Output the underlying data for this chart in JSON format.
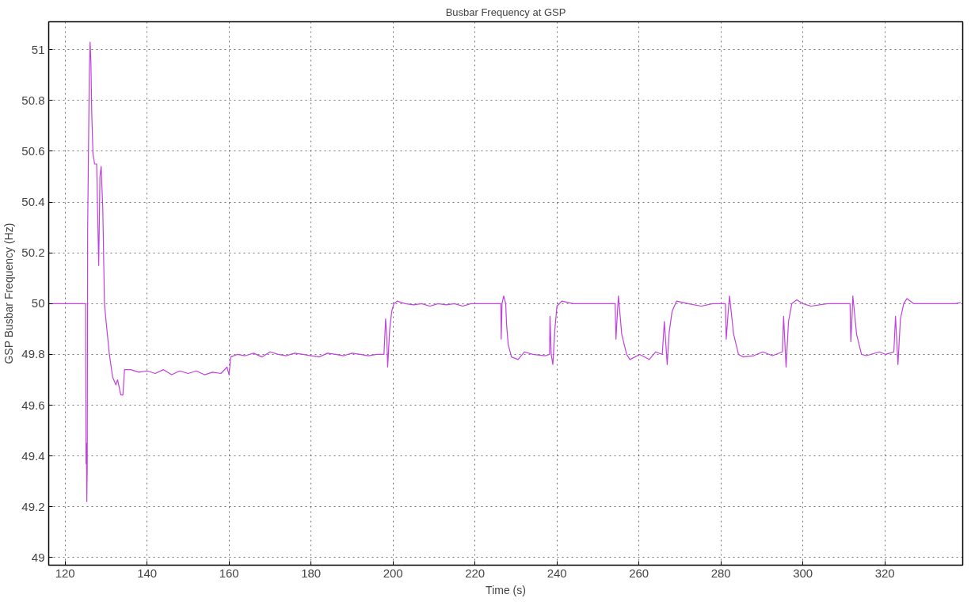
{
  "chart_data": {
    "type": "line",
    "title": "Busbar Frequency at GSP",
    "xlabel": "Time (s)",
    "ylabel": "GSP Busbar Frequency (Hz)",
    "xlim": [
      116,
      339
    ],
    "ylim": [
      48.97,
      51.11
    ],
    "xticks": [
      120,
      140,
      160,
      180,
      200,
      220,
      240,
      260,
      280,
      300,
      320
    ],
    "yticks": [
      49,
      49.2,
      49.4,
      49.6,
      49.8,
      50,
      50.2,
      50.4,
      50.6,
      50.8,
      51
    ],
    "grid": true,
    "marker": "none",
    "line_style": "solid",
    "series": [
      {
        "color": "#c040e0",
        "x": [
          116,
          125.0,
          125.1,
          125.2,
          125.3,
          125.4,
          125.5,
          125.9,
          126.1,
          126.3,
          126.5,
          126.8,
          127.2,
          127.7,
          128.2,
          128.5,
          128.8,
          129.2,
          129.6,
          130.0,
          130.8,
          131.6,
          132.4,
          132.8,
          133.6,
          134.1,
          134.5,
          136,
          138,
          140,
          142,
          144,
          146,
          148,
          150,
          152,
          154,
          156,
          158,
          159.5,
          160.0,
          160.4,
          162,
          164,
          166,
          168,
          170,
          172,
          174,
          176,
          178,
          180,
          182,
          184,
          186,
          188,
          190,
          192,
          194,
          196,
          197.8,
          198.2,
          198.5,
          198.7,
          199.2,
          199.7,
          200.2,
          201,
          203,
          205,
          207,
          209,
          211,
          213,
          215,
          217,
          219,
          221,
          223,
          225,
          226.3,
          226.4,
          226.6,
          227.0,
          227.5,
          227.7,
          228.1,
          228.9,
          230.5,
          232.1,
          234.1,
          237.2,
          238.2,
          238.3,
          238.6,
          239.0,
          239.5,
          240.0,
          241.2,
          244,
          248,
          252,
          254.2,
          254.4,
          254.7,
          255.0,
          255.8,
          257.0,
          257.8,
          260.2,
          262.5,
          264.1,
          265.7,
          266.2,
          266.9,
          267.4,
          268.1,
          269.2,
          272,
          275.2,
          278,
          281.1,
          281.3,
          281.7,
          282.1,
          283.1,
          284.3,
          285.5,
          288,
          290.2,
          292.6,
          295.0,
          295.3,
          295.9,
          296.5,
          297.3,
          298.5,
          300,
          302,
          306,
          309,
          311.5,
          311.7,
          312.0,
          312.2,
          313.1,
          314.3,
          315.5,
          318.7,
          320.2,
          322.2,
          322.6,
          323.2,
          323.8,
          324.6,
          325.4,
          327,
          330,
          334,
          337.2,
          338.5
        ],
        "values": [
          50.0,
          50.0,
          49.37,
          49.45,
          49.22,
          49.35,
          50.29,
          50.9,
          51.03,
          50.95,
          50.75,
          50.59,
          50.55,
          50.55,
          50.15,
          50.5,
          50.54,
          50.37,
          50.0,
          49.93,
          49.8,
          49.71,
          49.68,
          49.7,
          49.64,
          49.64,
          49.74,
          49.74,
          49.73,
          49.735,
          49.725,
          49.74,
          49.72,
          49.735,
          49.725,
          49.735,
          49.72,
          49.73,
          49.725,
          49.75,
          49.72,
          49.79,
          49.8,
          49.795,
          49.805,
          49.79,
          49.81,
          49.8,
          49.795,
          49.805,
          49.8,
          49.795,
          49.79,
          49.805,
          49.8,
          49.795,
          49.805,
          49.8,
          49.795,
          49.8,
          49.8,
          49.94,
          49.86,
          49.75,
          49.9,
          49.97,
          50.0,
          50.01,
          50.0,
          49.995,
          50.0,
          49.99,
          50.0,
          49.995,
          50.0,
          49.99,
          50.0,
          50.0,
          50.0,
          50.0,
          50.0,
          49.86,
          50.0,
          50.03,
          50.0,
          49.92,
          49.84,
          49.79,
          49.78,
          49.81,
          49.8,
          49.795,
          49.8,
          49.95,
          49.8,
          49.76,
          49.9,
          49.99,
          50.01,
          50.0,
          50.0,
          50.0,
          50.0,
          49.86,
          49.95,
          50.03,
          49.88,
          49.8,
          49.78,
          49.8,
          49.78,
          49.81,
          49.8,
          49.93,
          49.76,
          49.89,
          49.97,
          50.01,
          50.0,
          49.99,
          50.0,
          50.0,
          49.86,
          49.95,
          50.03,
          49.88,
          49.8,
          49.79,
          49.795,
          49.81,
          49.795,
          49.81,
          49.95,
          49.75,
          49.93,
          50.0,
          50.015,
          50.0,
          49.99,
          50.0,
          50.0,
          50.0,
          49.85,
          49.95,
          50.03,
          49.88,
          49.8,
          49.795,
          49.81,
          49.8,
          49.81,
          49.95,
          49.76,
          49.94,
          50.0,
          50.02,
          50.0,
          50.0,
          50.0,
          50.0,
          50.005
        ]
      }
    ]
  }
}
